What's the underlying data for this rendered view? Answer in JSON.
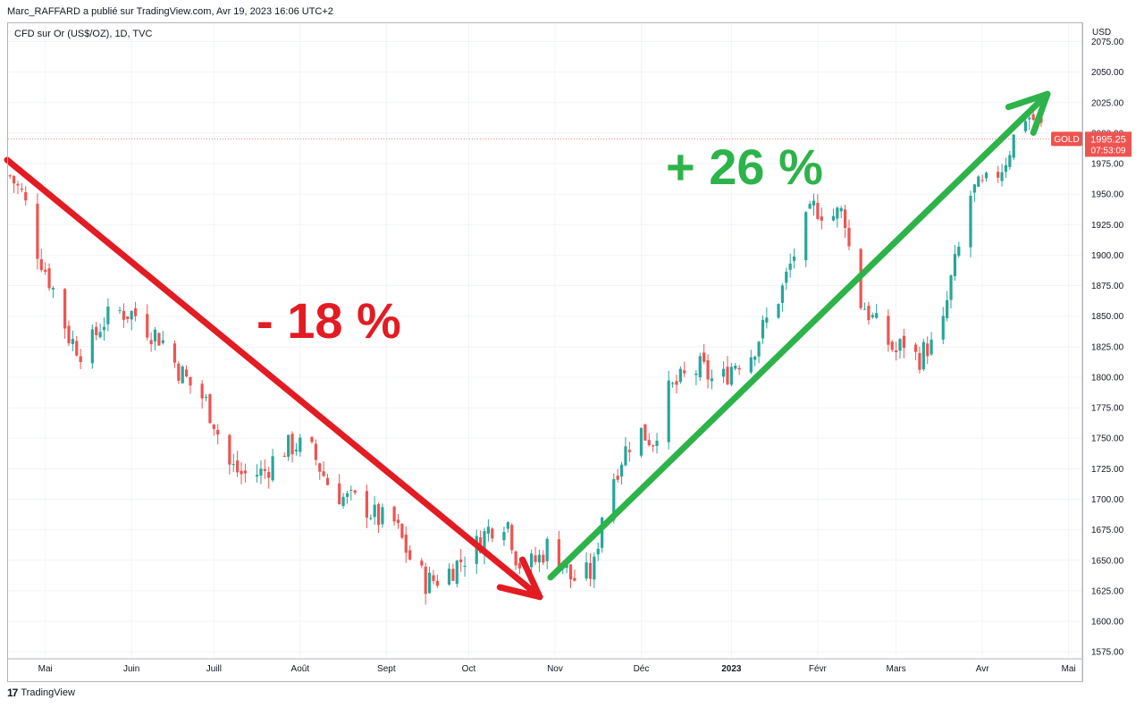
{
  "header": {
    "publisher_line": "Marc_RAFFARD a publié sur TradingView.com, Avr 19, 2023 16:06 UTC+2",
    "symbol_line": "CFD sur Or (US$/OZ), 1D, TVC",
    "currency": "USD"
  },
  "footer": {
    "brand": "TradingView",
    "logo_text": "17"
  },
  "price_badge": {
    "symbol": "GOLD",
    "price": "1995.25",
    "countdown": "07:53:09",
    "color": "#ef5350"
  },
  "annotations": {
    "down_label": "- 18 %",
    "up_label": "+ 26 %",
    "down_color": "#e31b23",
    "up_color": "#2db34a"
  },
  "colors": {
    "up_candle": "#26a69a",
    "down_candle": "#ef5350",
    "grid": "#f0f3fa"
  },
  "chart_data": {
    "type": "candlestick",
    "title": "CFD sur Or (US$/OZ), 1D, TVC",
    "ylabel": "USD",
    "ylim": [
      1570,
      2090
    ],
    "y_ticks": [
      1575,
      1600,
      1625,
      1650,
      1675,
      1700,
      1725,
      1750,
      1775,
      1800,
      1825,
      1850,
      1875,
      1900,
      1925,
      1950,
      1975,
      2000,
      2025,
      2050,
      2075
    ],
    "y_tick_labels": [
      "1575.00",
      "1600.00",
      "1625.00",
      "1650.00",
      "1675.00",
      "1700.00",
      "1725.00",
      "1750.00",
      "1775.00",
      "1800.00",
      "1825.00",
      "1850.00",
      "1875.00",
      "1900.00",
      "1925.00",
      "1950.00",
      "1975.00",
      "2000.00",
      "2025.00",
      "2050.00",
      "2075.00"
    ],
    "x_ticks": [
      "Mai",
      "Juin",
      "Juill",
      "Août",
      "Sept",
      "Oct",
      "Nov",
      "Déc",
      "2023",
      "Févr",
      "Mars",
      "Avr",
      "Mai"
    ],
    "x_tick_bold": [
      false,
      false,
      false,
      false,
      false,
      false,
      false,
      false,
      true,
      false,
      false,
      false,
      false
    ],
    "x_tick_index": [
      9,
      31,
      52,
      74,
      96,
      117,
      139,
      161,
      184,
      206,
      226,
      248,
      270
    ],
    "n_slots": 274,
    "grid": true,
    "close_path": [
      [
        0,
        1965
      ],
      [
        5,
        1948
      ],
      [
        10,
        1905
      ],
      [
        16,
        1872
      ],
      [
        22,
        1832
      ],
      [
        28,
        1818
      ],
      [
        34,
        1845
      ],
      [
        40,
        1854
      ],
      [
        46,
        1852
      ],
      [
        52,
        1838
      ],
      [
        56,
        1832
      ],
      [
        62,
        1808
      ],
      [
        68,
        1790
      ],
      [
        72,
        1782
      ],
      [
        76,
        1762
      ],
      [
        80,
        1730
      ],
      [
        86,
        1720
      ],
      [
        94,
        1722
      ],
      [
        100,
        1740
      ],
      [
        106,
        1745
      ],
      [
        112,
        1738
      ],
      [
        118,
        1712
      ],
      [
        124,
        1700
      ],
      [
        130,
        1698
      ],
      [
        136,
        1684
      ],
      [
        142,
        1682
      ],
      [
        148,
        1652
      ],
      [
        154,
        1632
      ],
      [
        160,
        1636
      ],
      [
        166,
        1648
      ],
      [
        172,
        1660
      ],
      [
        178,
        1678
      ],
      [
        184,
        1684
      ],
      [
        188,
        1648
      ],
      [
        192,
        1645
      ],
      [
        196,
        1652
      ],
      [
        200,
        1665
      ],
      [
        204,
        1650
      ],
      [
        208,
        1634
      ],
      [
        212,
        1637
      ],
      [
        216,
        1640
      ],
      [
        220,
        1700
      ],
      [
        226,
        1732
      ],
      [
        232,
        1758
      ],
      [
        238,
        1748
      ],
      [
        244,
        1788
      ],
      [
        250,
        1800
      ],
      [
        256,
        1808
      ],
      [
        262,
        1792
      ],
      [
        268,
        1812
      ],
      [
        274,
        1818
      ],
      [
        280,
        1845
      ],
      [
        286,
        1872
      ],
      [
        292,
        1912
      ],
      [
        298,
        1940
      ],
      [
        304,
        1932
      ],
      [
        308,
        1935
      ],
      [
        310,
        1928
      ],
      [
        312,
        1865
      ],
      [
        316,
        1860
      ],
      [
        322,
        1838
      ],
      [
        328,
        1820
      ],
      [
        332,
        1832
      ],
      [
        336,
        1814
      ],
      [
        340,
        1826
      ],
      [
        344,
        1822
      ],
      [
        348,
        1875
      ],
      [
        352,
        1910
      ],
      [
        356,
        1952
      ],
      [
        360,
        1955
      ],
      [
        364,
        1962
      ],
      [
        368,
        1975
      ],
      [
        372,
        1998
      ],
      [
        376,
        2015
      ],
      [
        380,
        2010
      ],
      [
        384,
        1998
      ],
      [
        388,
        2020
      ],
      [
        392,
        1995
      ]
    ],
    "close_path_x_units": "trading-day index (approx)",
    "last_price": 1995.25,
    "annotations": [
      {
        "text": "- 18 %",
        "from": {
          "x_label": "Avr 2022",
          "y": 1978
        },
        "to": {
          "x_label": "Nov",
          "y": 1620
        }
      },
      {
        "text": "+ 26 %",
        "from": {
          "x_label": "Nov",
          "y": 1636
        },
        "to": {
          "x_label": "Avr",
          "y": 2032
        }
      }
    ]
  }
}
